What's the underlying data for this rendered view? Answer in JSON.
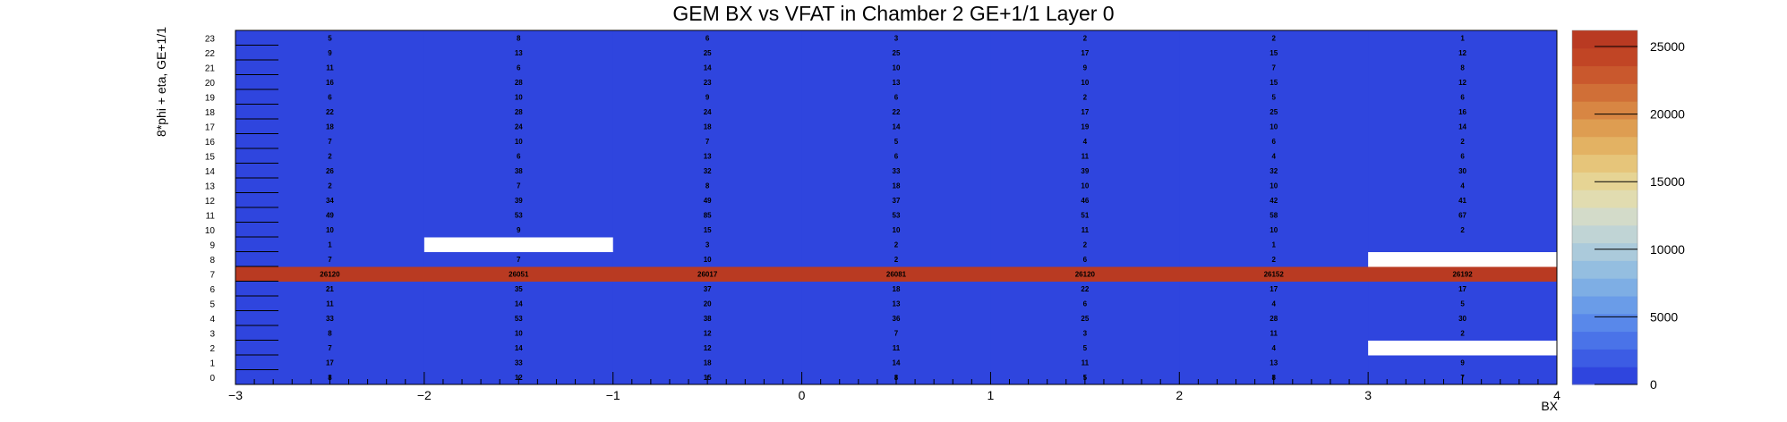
{
  "chart_data": {
    "type": "heatmap",
    "title": "GEM BX vs VFAT in Chamber 2 GE+1/1 Layer 0",
    "xlabel": "BX",
    "ylabel": "8*phi + eta, GE+1/1",
    "x_range": [
      -3,
      4
    ],
    "x_tick_labels": [
      "−3",
      "−2",
      "−1",
      "0",
      "1",
      "2",
      "3",
      "4"
    ],
    "x_bin_centers": [
      -2.5,
      -1.5,
      -0.5,
      0.5,
      1.5,
      2.5,
      3.5
    ],
    "y_labels": [
      "0",
      "1",
      "2",
      "3",
      "4",
      "5",
      "6",
      "7",
      "8",
      "9",
      "10",
      "11",
      "12",
      "13",
      "14",
      "15",
      "16",
      "17",
      "18",
      "19",
      "20",
      "21",
      "22",
      "23"
    ],
    "z_range": [
      0,
      26192
    ],
    "z_ticks": [
      0,
      5000,
      10000,
      15000,
      20000,
      25000
    ],
    "z_tick_labels": [
      "0",
      "5000",
      "10000",
      "15000",
      "20000",
      "25000"
    ],
    "grid": false,
    "palette_colors": [
      "#2f45de",
      "#3c5ce4",
      "#4a73e8",
      "#5988ea",
      "#6a9ce8",
      "#7eaee4",
      "#94bee0",
      "#abcadb",
      "#c0d4d5",
      "#d3dbc9",
      "#e1dcb0",
      "#e6d494",
      "#e6c57a",
      "#e3b263",
      "#de9d51",
      "#d88643",
      "#d06f37",
      "#c9582d",
      "#c14525",
      "#b93a22"
    ],
    "empty_color": "#ffffff",
    "values": [
      [
        8,
        12,
        15,
        8,
        5,
        8,
        7
      ],
      [
        17,
        33,
        18,
        14,
        11,
        13,
        9
      ],
      [
        7,
        14,
        12,
        11,
        5,
        4,
        null
      ],
      [
        8,
        10,
        12,
        7,
        3,
        11,
        2
      ],
      [
        33,
        53,
        38,
        36,
        25,
        28,
        30
      ],
      [
        11,
        14,
        20,
        13,
        6,
        4,
        5
      ],
      [
        21,
        35,
        37,
        18,
        22,
        17,
        17
      ],
      [
        26120,
        26051,
        26017,
        26081,
        26120,
        26152,
        26192
      ],
      [
        7,
        7,
        10,
        2,
        6,
        2,
        null
      ],
      [
        1,
        null,
        3,
        2,
        2,
        1,
        0
      ],
      [
        10,
        9,
        15,
        10,
        11,
        10,
        2
      ],
      [
        49,
        53,
        85,
        53,
        51,
        58,
        67
      ],
      [
        34,
        39,
        49,
        37,
        46,
        42,
        41
      ],
      [
        2,
        7,
        8,
        18,
        10,
        10,
        4
      ],
      [
        26,
        38,
        32,
        33,
        39,
        32,
        30
      ],
      [
        2,
        6,
        13,
        6,
        11,
        4,
        6
      ],
      [
        7,
        10,
        7,
        5,
        4,
        6,
        2
      ],
      [
        18,
        24,
        18,
        14,
        19,
        10,
        14
      ],
      [
        22,
        28,
        24,
        22,
        17,
        25,
        16
      ],
      [
        6,
        10,
        9,
        6,
        2,
        5,
        6
      ],
      [
        16,
        28,
        23,
        13,
        10,
        15,
        12
      ],
      [
        11,
        6,
        14,
        10,
        9,
        7,
        8
      ],
      [
        9,
        13,
        25,
        25,
        17,
        15,
        12
      ],
      [
        5,
        8,
        6,
        3,
        2,
        2,
        1
      ]
    ]
  }
}
